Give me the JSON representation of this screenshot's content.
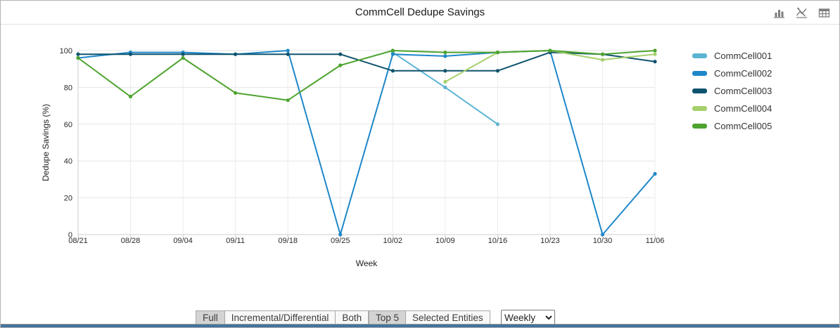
{
  "title": "CommCell Dedupe Savings",
  "toolbar": {
    "icons": [
      {
        "name": "bar-chart-view-icon"
      },
      {
        "name": "line-chart-view-icon"
      },
      {
        "name": "table-view-icon"
      }
    ]
  },
  "chart_data": {
    "type": "line",
    "title": "CommCell Dedupe Savings",
    "xlabel": "Week",
    "ylabel": "Dedupe Savings (%)",
    "ylim": [
      0,
      100
    ],
    "yticks": [
      0,
      20,
      40,
      60,
      80,
      100
    ],
    "grid": true,
    "legend_position": "right",
    "categories": [
      "08/21",
      "08/28",
      "09/04",
      "09/11",
      "09/18",
      "09/25",
      "10/02",
      "10/09",
      "10/16",
      "10/23",
      "10/30",
      "11/06"
    ],
    "series": [
      {
        "name": "CommCell001",
        "color": "#5bb4d2",
        "values": [
          null,
          null,
          null,
          null,
          null,
          null,
          99,
          80,
          60,
          null,
          null,
          null
        ]
      },
      {
        "name": "CommCell002",
        "color": "#1e87c9",
        "values": [
          96,
          99,
          99,
          98,
          100,
          0,
          98,
          97,
          99,
          100,
          0,
          33
        ]
      },
      {
        "name": "CommCell003",
        "color": "#0f536e",
        "values": [
          98,
          98,
          98,
          98,
          98,
          98,
          89,
          89,
          89,
          99,
          98,
          94
        ]
      },
      {
        "name": "CommCell004",
        "color": "#a6d06c",
        "values": [
          null,
          null,
          null,
          null,
          null,
          null,
          null,
          83,
          99,
          100,
          95,
          98
        ]
      },
      {
        "name": "CommCell005",
        "color": "#4da32f",
        "values": [
          96,
          75,
          96,
          77,
          73,
          92,
          100,
          99,
          99,
          100,
          98,
          100
        ]
      }
    ]
  },
  "controls": {
    "type_group": [
      {
        "label": "Full",
        "selected": true
      },
      {
        "label": "Incremental/Differential",
        "selected": false
      },
      {
        "label": "Both",
        "selected": false
      }
    ],
    "entity_group": [
      {
        "label": "Top 5",
        "selected": true
      },
      {
        "label": "Selected Entities",
        "selected": false
      }
    ],
    "frequency": {
      "value": "Weekly",
      "options": [
        "Weekly"
      ]
    }
  },
  "accent_colors": {
    "bottom_strip": "#44739e",
    "grid_line": "#e6e6e6",
    "axis_line": "#cccccc"
  }
}
